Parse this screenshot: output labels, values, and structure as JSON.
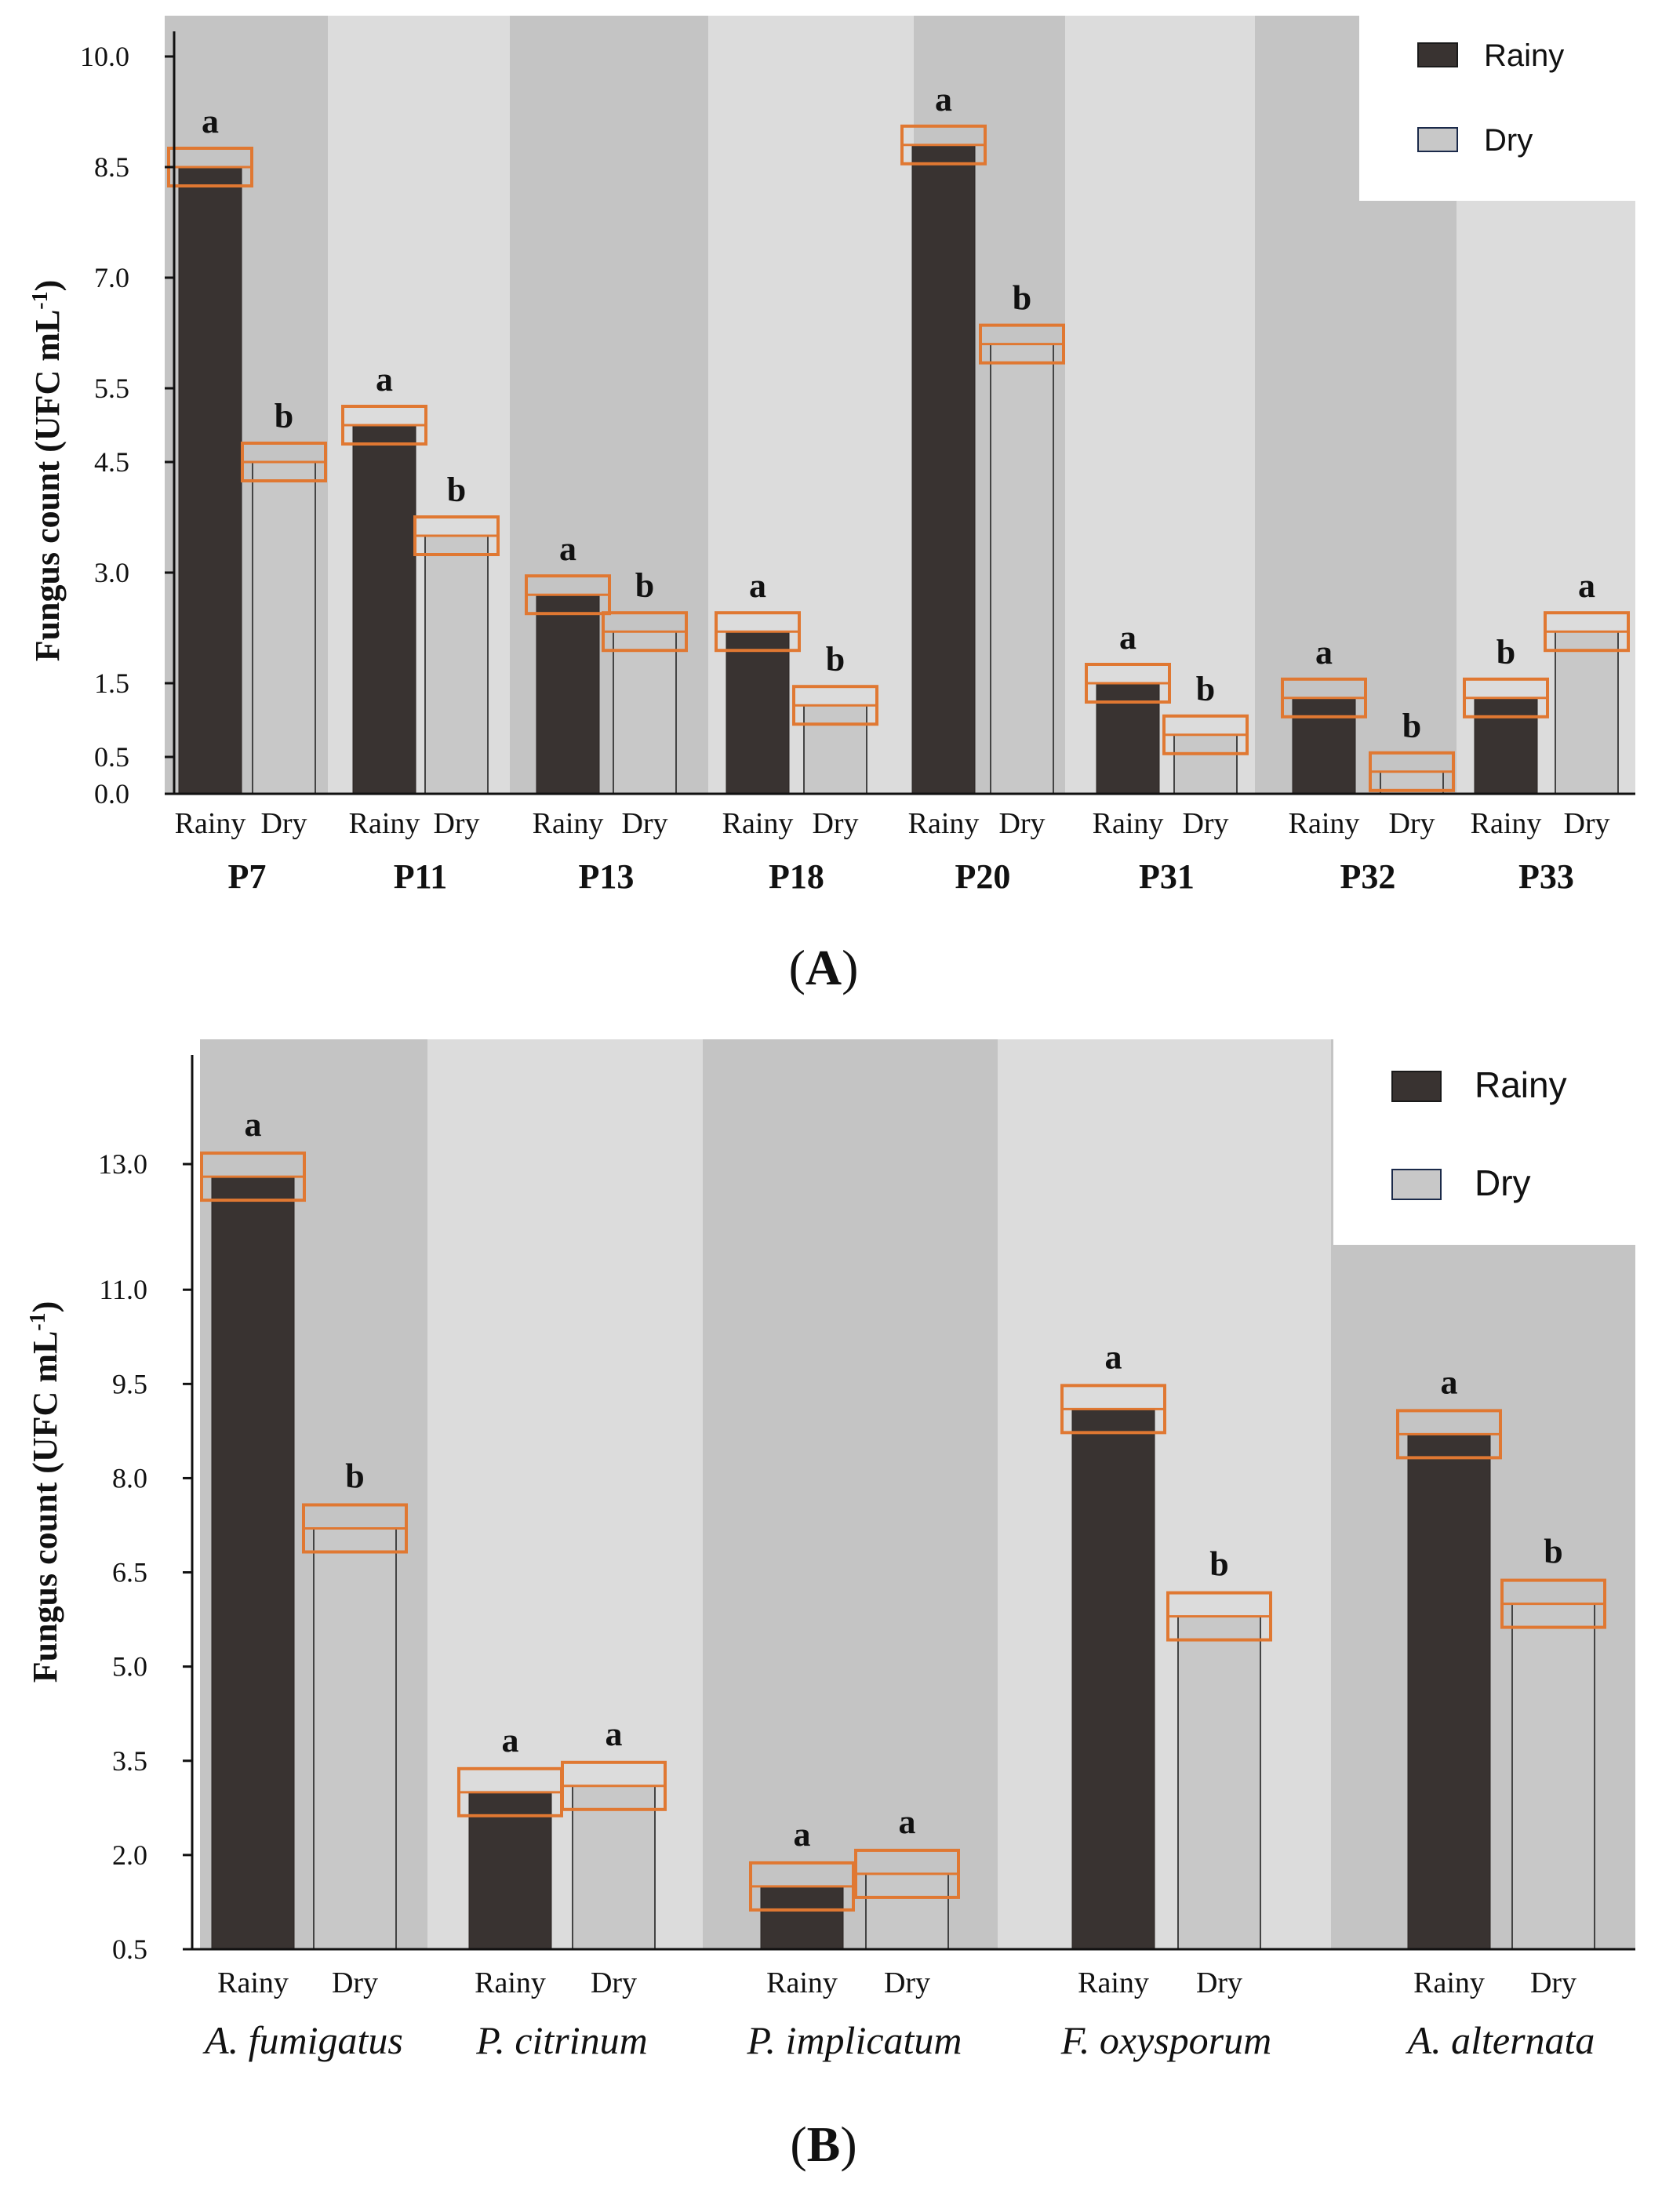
{
  "chart_data": [
    {
      "type": "bar",
      "panel_label": "A",
      "ylabel": "Fungus count (UFC mL",
      "ylabel_sup": "-1",
      "yticks": [
        0.0,
        0.5,
        1.5,
        3.0,
        4.5,
        5.5,
        7.0,
        8.5,
        10.0
      ],
      "ytick_labels": [
        "0.0",
        "0.5",
        "1.5",
        "3.0",
        "4.5",
        "5.5",
        "7.0",
        "8.5",
        "10.0"
      ],
      "ylim": [
        0,
        10
      ],
      "categories": [
        "P7",
        "P11",
        "P13",
        "P18",
        "P20",
        "P31",
        "P32",
        "P33"
      ],
      "pair_labels": [
        "Rainy",
        "Dry"
      ],
      "series": [
        {
          "name": "Rainy",
          "color": "#393331",
          "values": [
            8.5,
            5.0,
            2.7,
            2.2,
            8.8,
            1.5,
            1.3,
            1.3
          ],
          "sig": [
            "a",
            "a",
            "a",
            "a",
            "a",
            "a",
            "a",
            "b"
          ]
        },
        {
          "name": "Dry",
          "color": "#c8c8c8",
          "values": [
            4.5,
            3.5,
            2.2,
            1.2,
            6.1,
            0.8,
            0.3,
            2.2
          ],
          "sig": [
            "b",
            "b",
            "b",
            "b",
            "b",
            "b",
            "b",
            "a"
          ]
        }
      ],
      "legend": [
        "Rainy",
        "Dry"
      ],
      "legend_position": "top-right"
    },
    {
      "type": "bar",
      "panel_label": "B",
      "ylabel": "Fungus count (UFC mL",
      "ylabel_sup": "-1",
      "yticks": [
        0.5,
        2.0,
        3.5,
        5.0,
        6.5,
        8.0,
        9.5,
        11.0,
        13.0
      ],
      "ytick_labels": [
        "0.5",
        "2.0",
        "3.5",
        "5.0",
        "6.5",
        "8.0",
        "9.5",
        "11.0",
        "13.0"
      ],
      "ylim": [
        0.5,
        13.9
      ],
      "categories": [
        "A. fumigatus",
        "P. citrinum",
        "P. implicatum",
        "F. oxysporum",
        "A. alternata"
      ],
      "pair_labels": [
        "Rainy",
        "Dry"
      ],
      "series": [
        {
          "name": "Rainy",
          "color": "#393331",
          "values": [
            12.8,
            3.0,
            1.5,
            9.1,
            8.7
          ],
          "sig": [
            "a",
            "a",
            "a",
            "a",
            "a"
          ]
        },
        {
          "name": "Dry",
          "color": "#c8c8c8",
          "values": [
            7.2,
            3.1,
            1.7,
            5.8,
            6.0
          ],
          "sig": [
            "b",
            "a",
            "a",
            "b",
            "b"
          ]
        }
      ],
      "legend": [
        "Rainy",
        "Dry"
      ],
      "legend_position": "top-right"
    }
  ]
}
